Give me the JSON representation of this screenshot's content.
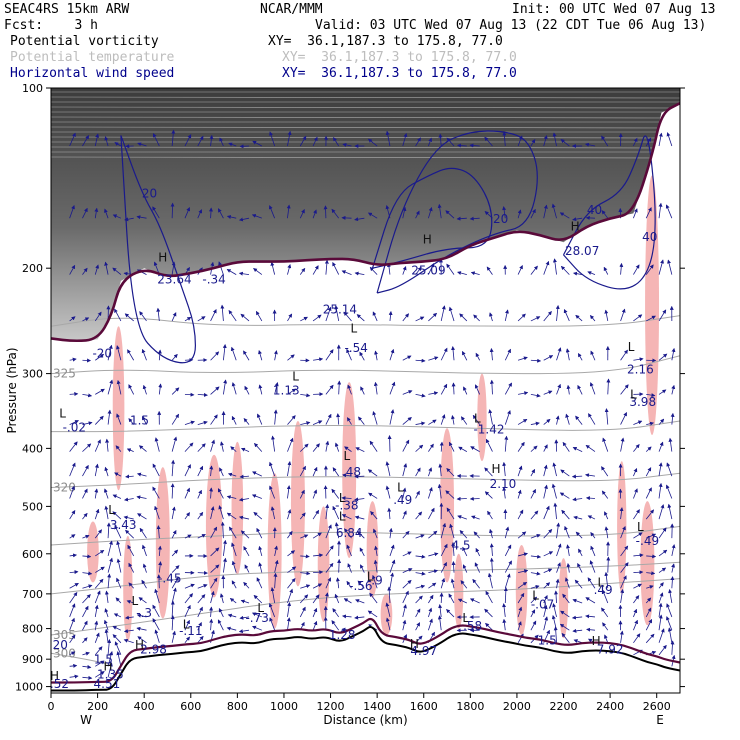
{
  "header": {
    "model": "SEAC4RS 15km ARW",
    "center": "NCAR/MMM",
    "init": "Init: 00 UTC Wed 07 Aug 13",
    "fcst": "Fcst:    3 h",
    "valid": "Valid: 03 UTC Wed 07 Aug 13 (22 CDT Tue 06 Aug 13)",
    "fields": [
      {
        "label": "Potential vorticity",
        "xy": "XY=  36.1,187.3 to 175.8, 77.0",
        "color": "#000000"
      },
      {
        "label": "Potential temperature",
        "xy": "XY=  36.1,187.3 to 175.8, 77.0",
        "color": "#bdbdbd"
      },
      {
        "label": "Horizontal wind speed",
        "xy": "XY=  36.1,187.3 to 175.8, 77.0",
        "color": "#00008b"
      }
    ]
  },
  "colors": {
    "pv_fill": "#f5b5b5",
    "stratosphere": "#4a4a4a",
    "tropopause": "#5a0a3a",
    "theta": "#a8a8a8",
    "wind": "#1a1a8c",
    "terrain": "#000000"
  },
  "chart_data": {
    "type": "cross-section",
    "xlabel": "Distance (km)",
    "ylabel": "Pressure (hPa)",
    "xlim": [
      0,
      2700
    ],
    "ylim": [
      1025,
      100
    ],
    "y_scale": "log",
    "x_ticks": [
      0,
      200,
      400,
      600,
      800,
      1000,
      1200,
      1400,
      1600,
      1800,
      2000,
      2200,
      2400,
      2600
    ],
    "y_ticks": [
      100,
      200,
      300,
      400,
      500,
      600,
      700,
      800,
      900,
      1000
    ],
    "end_labels": {
      "left": "W",
      "right": "E"
    },
    "terrain": {
      "x": [
        0,
        100,
        200,
        260,
        300,
        340,
        400,
        460,
        520,
        580,
        640,
        700,
        760,
        820,
        880,
        940,
        1000,
        1060,
        1120,
        1180,
        1240,
        1300,
        1340,
        1380,
        1420,
        1480,
        1540,
        1580,
        1620,
        1680,
        1720,
        1760,
        1800,
        1860,
        1920,
        1980,
        2040,
        2100,
        2160,
        2220,
        2280,
        2340,
        2400,
        2460,
        2520,
        2560,
        2600,
        2640,
        2700
      ],
      "p": [
        1015,
        1015,
        1013,
        1012,
        952,
        898,
        892,
        886,
        882,
        876,
        874,
        860,
        848,
        843,
        848,
        833,
        832,
        825,
        833,
        825,
        843,
        822,
        808,
        788,
        845,
        852,
        862,
        877,
        868,
        842,
        822,
        814,
        818,
        826,
        837,
        845,
        855,
        860,
        873,
        880,
        872,
        870,
        872,
        880,
        898,
        910,
        918,
        930,
        940
      ]
    },
    "tropopause": {
      "x": [
        0,
        100,
        200,
        260,
        300,
        400,
        500,
        600,
        700,
        800,
        900,
        1000,
        1100,
        1200,
        1300,
        1400,
        1500,
        1600,
        1700,
        1800,
        1900,
        2000,
        2100,
        2200,
        2300,
        2400,
        2500,
        2580,
        2620,
        2700
      ],
      "p": [
        262,
        265,
        263,
        240,
        210,
        200,
        207,
        204,
        200,
        195,
        195,
        195,
        194,
        193,
        193,
        198,
        196,
        195,
        193,
        183,
        178,
        173,
        176,
        181,
        170,
        165,
        162,
        130,
        110,
        106
      ]
    },
    "theta_contours": [
      {
        "label": "300",
        "x": [
          0,
          150,
          260
        ],
        "p": [
          880,
          900,
          920
        ]
      },
      {
        "label": "305",
        "x": [
          0,
          300,
          600,
          1000,
          1400,
          2000,
          2700
        ],
        "p": [
          820,
          790,
          760,
          720,
          700,
          690,
          660
        ]
      },
      {
        "label": "",
        "x": [
          0,
          300,
          700,
          1200,
          1800,
          2400,
          2700
        ],
        "p": [
          700,
          680,
          650,
          640,
          640,
          630,
          620
        ]
      },
      {
        "label": "",
        "x": [
          0,
          300,
          700,
          1200,
          1800,
          2400,
          2700
        ],
        "p": [
          580,
          570,
          560,
          550,
          560,
          560,
          540
        ]
      },
      {
        "label": "320",
        "x": [
          0,
          300,
          700,
          1200,
          1800,
          2400,
          2700
        ],
        "p": [
          465,
          460,
          450,
          445,
          450,
          455,
          440
        ]
      },
      {
        "label": "",
        "x": [
          0,
          300,
          700,
          1200,
          1800,
          2400,
          2700
        ],
        "p": [
          375,
          375,
          370,
          365,
          370,
          375,
          360
        ]
      },
      {
        "label": "325",
        "x": [
          0,
          300,
          700,
          1200,
          1800,
          2400,
          2700
        ],
        "p": [
          300,
          295,
          300,
          295,
          300,
          300,
          280
        ]
      },
      {
        "label": "",
        "x": [
          0,
          300,
          700,
          1200,
          1800,
          2400,
          2700
        ],
        "p": [
          250,
          240,
          250,
          248,
          250,
          250,
          240
        ]
      }
    ],
    "labels": [
      {
        "text": "H",
        "x": 15,
        "p": 975
      },
      {
        "text": "1.52",
        "x": 20,
        "p": 1005
      },
      {
        "text": "H",
        "x": 245,
        "p": 940
      },
      {
        "text": "4.51",
        "x": 240,
        "p": 1005
      },
      {
        "text": "1.35",
        "x": 255,
        "p": 970
      },
      {
        "text": "1.5",
        "x": 225,
        "p": 915
      },
      {
        "text": "20",
        "x": 40,
        "p": 865
      },
      {
        "text": "H",
        "x": 380,
        "p": 865
      },
      {
        "text": "2.98",
        "x": 440,
        "p": 880
      },
      {
        "text": "L",
        "x": 360,
        "p": 730
      },
      {
        "text": "-.3",
        "x": 400,
        "p": 765
      },
      {
        "text": "-.45",
        "x": 510,
        "p": 670
      },
      {
        "text": "-.11",
        "x": 600,
        "p": 820
      },
      {
        "text": "L",
        "x": 580,
        "p": 800
      },
      {
        "text": "L",
        "x": 900,
        "p": 750
      },
      {
        "text": "-.73",
        "x": 885,
        "p": 780
      },
      {
        "text": "L",
        "x": 260,
        "p": 515
      },
      {
        "text": "3.43",
        "x": 310,
        "p": 545
      },
      {
        "text": "L",
        "x": 50,
        "p": 355
      },
      {
        "text": "-.02",
        "x": 100,
        "p": 375
      },
      {
        "text": "1.5",
        "x": 380,
        "p": 365
      },
      {
        "text": "-20",
        "x": 220,
        "p": 282
      },
      {
        "text": "H",
        "x": 480,
        "p": 195
      },
      {
        "text": "23.64",
        "x": 530,
        "p": 212
      },
      {
        "text": "-.34",
        "x": 700,
        "p": 212
      },
      {
        "text": "L",
        "x": 1050,
        "p": 308
      },
      {
        "text": "1.13",
        "x": 1010,
        "p": 325
      },
      {
        "text": "25.14",
        "x": 1240,
        "p": 238
      },
      {
        "text": "-.54",
        "x": 1310,
        "p": 276
      },
      {
        "text": "L",
        "x": 1300,
        "p": 256
      },
      {
        "text": "L",
        "x": 1270,
        "p": 418
      },
      {
        "text": ".48",
        "x": 1290,
        "p": 445
      },
      {
        "text": "L",
        "x": 1250,
        "p": 492
      },
      {
        "text": "-.38",
        "x": 1270,
        "p": 506
      },
      {
        "text": "L",
        "x": 1250,
        "p": 528
      },
      {
        "text": "6.84",
        "x": 1280,
        "p": 562
      },
      {
        "text": "L",
        "x": 1370,
        "p": 665
      },
      {
        "text": "-.9",
        "x": 1390,
        "p": 675
      },
      {
        "text": "-.56",
        "x": 1330,
        "p": 690
      },
      {
        "text": "L",
        "x": 1500,
        "p": 472
      },
      {
        "text": ".49",
        "x": 1510,
        "p": 495
      },
      {
        "text": "4.5",
        "x": 1760,
        "p": 590
      },
      {
        "text": "L",
        "x": 1830,
        "p": 362
      },
      {
        "text": "-1.42",
        "x": 1880,
        "p": 378
      },
      {
        "text": "H",
        "x": 1910,
        "p": 440
      },
      {
        "text": "2.10",
        "x": 1940,
        "p": 466
      },
      {
        "text": "H",
        "x": 1615,
        "p": 182
      },
      {
        "text": "25.09",
        "x": 1620,
        "p": 205
      },
      {
        "text": "20",
        "x": 1930,
        "p": 168
      },
      {
        "text": "H",
        "x": 2250,
        "p": 173
      },
      {
        "text": "28.07",
        "x": 2280,
        "p": 190
      },
      {
        "text": "40",
        "x": 2570,
        "p": 180
      },
      {
        "text": "L",
        "x": 2490,
        "p": 275
      },
      {
        "text": "2.16",
        "x": 2530,
        "p": 300
      },
      {
        "text": "3.98",
        "x": 2540,
        "p": 340
      },
      {
        "text": "L",
        "x": 2500,
        "p": 330
      },
      {
        "text": "L",
        "x": 2530,
        "p": 550
      },
      {
        "text": "-.49",
        "x": 2560,
        "p": 580
      },
      {
        "text": "L",
        "x": 2360,
        "p": 680
      },
      {
        "text": ".49",
        "x": 2370,
        "p": 700
      },
      {
        "text": "L",
        "x": 2080,
        "p": 715
      },
      {
        "text": "-.07",
        "x": 2110,
        "p": 740
      },
      {
        "text": "L",
        "x": 1780,
        "p": 780
      },
      {
        "text": ".58",
        "x": 1810,
        "p": 805
      },
      {
        "text": "1.5",
        "x": 2130,
        "p": 850
      },
      {
        "text": "H",
        "x": 2340,
        "p": 852
      },
      {
        "text": "7.92",
        "x": 2400,
        "p": 880
      },
      {
        "text": "H",
        "x": 1560,
        "p": 862
      },
      {
        "text": "4.97",
        "x": 1600,
        "p": 885
      },
      {
        "text": "1.28",
        "x": 1250,
        "p": 832
      }
    ],
    "pv_blobs": [
      {
        "x": 290,
        "p": 360,
        "w": 50,
        "dp": 220
      },
      {
        "x": 330,
        "p": 700,
        "w": 40,
        "dp": 280
      },
      {
        "x": 480,
        "p": 600,
        "w": 60,
        "dp": 340
      },
      {
        "x": 700,
        "p": 560,
        "w": 70,
        "dp": 300
      },
      {
        "x": 800,
        "p": 520,
        "w": 50,
        "dp": 260
      },
      {
        "x": 960,
        "p": 620,
        "w": 60,
        "dp": 360
      },
      {
        "x": 1060,
        "p": 520,
        "w": 60,
        "dp": 320
      },
      {
        "x": 1170,
        "p": 640,
        "w": 50,
        "dp": 280
      },
      {
        "x": 1280,
        "p": 460,
        "w": 60,
        "dp": 300
      },
      {
        "x": 1380,
        "p": 600,
        "w": 50,
        "dp": 220
      },
      {
        "x": 1440,
        "p": 760,
        "w": 50,
        "dp": 120
      },
      {
        "x": 1700,
        "p": 520,
        "w": 60,
        "dp": 300
      },
      {
        "x": 1750,
        "p": 700,
        "w": 40,
        "dp": 200
      },
      {
        "x": 1850,
        "p": 360,
        "w": 40,
        "dp": 120
      },
      {
        "x": 2020,
        "p": 700,
        "w": 50,
        "dp": 240
      },
      {
        "x": 2200,
        "p": 720,
        "w": 40,
        "dp": 220
      },
      {
        "x": 2450,
        "p": 560,
        "w": 40,
        "dp": 280
      },
      {
        "x": 2580,
        "p": 260,
        "w": 60,
        "dp": 240
      },
      {
        "x": 2560,
        "p": 640,
        "w": 60,
        "dp": 300
      },
      {
        "x": 180,
        "p": 600,
        "w": 50,
        "dp": 140
      }
    ],
    "wind_jets": [
      {
        "label": "20",
        "x": [
          300,
          390,
          470,
          560,
          620,
          620,
          480,
          350,
          300
        ],
        "p": [
          120,
          150,
          170,
          215,
          250,
          290,
          285,
          250,
          120
        ]
      },
      {
        "label": "",
        "x": [
          1380,
          1480,
          1620,
          1720,
          1820,
          1900,
          1880,
          1700,
          1500,
          1380
        ],
        "p": [
          200,
          150,
          140,
          135,
          140,
          160,
          185,
          185,
          195,
          200
        ]
      },
      {
        "label": "40",
        "x": [
          2200,
          2300,
          2450,
          2520,
          2560,
          2600,
          2580,
          2480,
          2300,
          2200
        ],
        "p": [
          190,
          160,
          150,
          130,
          115,
          160,
          200,
          220,
          210,
          190
        ]
      },
      {
        "label": "",
        "x": [
          1400,
          1500,
          1650,
          1800,
          1950,
          2050,
          2100,
          2050,
          1900,
          1700,
          1500,
          1400
        ],
        "p": [
          220,
          160,
          125,
          118,
          118,
          122,
          140,
          170,
          175,
          190,
          215,
          220
        ]
      }
    ]
  }
}
